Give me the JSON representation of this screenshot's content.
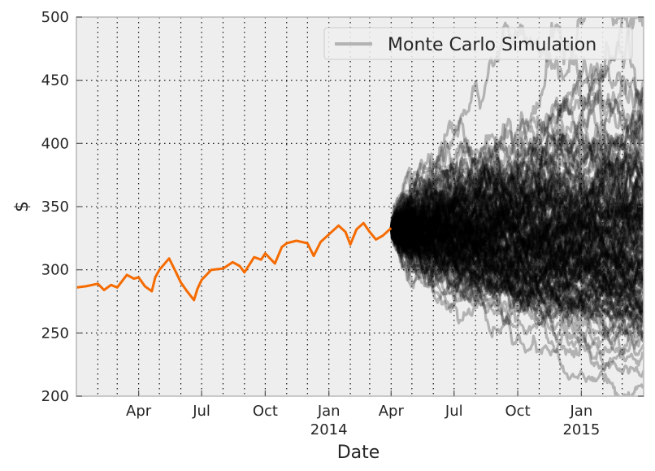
{
  "chart_data": {
    "type": "line",
    "title": "",
    "xlabel": "Date",
    "ylabel": "$",
    "ylim": [
      200,
      500
    ],
    "xlim": [
      "2013-01-01",
      "2015-04-01"
    ],
    "grid": true,
    "grid_style": "dotted",
    "background": "#eeeeee",
    "y_ticks": [
      200,
      250,
      300,
      350,
      400,
      450,
      500
    ],
    "x_ticks": [
      {
        "date": "2013-04-01",
        "label": "Apr",
        "sublabel": ""
      },
      {
        "date": "2013-07-01",
        "label": "Jul",
        "sublabel": ""
      },
      {
        "date": "2013-10-01",
        "label": "Oct",
        "sublabel": ""
      },
      {
        "date": "2014-01-01",
        "label": "Jan",
        "sublabel": "2014"
      },
      {
        "date": "2014-04-01",
        "label": "Apr",
        "sublabel": ""
      },
      {
        "date": "2014-07-01",
        "label": "Jul",
        "sublabel": ""
      },
      {
        "date": "2014-10-01",
        "label": "Oct",
        "sublabel": ""
      },
      {
        "date": "2015-01-01",
        "label": "Jan",
        "sublabel": "2015"
      }
    ],
    "legend": {
      "placement": "top-right",
      "entries": [
        {
          "label": "Monte Carlo Simulation",
          "color": "#000000"
        }
      ]
    },
    "series": [
      {
        "color": "#f56b00",
        "x": [
          "2013-01-01",
          "2013-01-15",
          "2013-02-01",
          "2013-02-10",
          "2013-02-20",
          "2013-03-01",
          "2013-03-15",
          "2013-03-25",
          "2013-04-01",
          "2013-04-10",
          "2013-04-20",
          "2013-04-25",
          "2013-05-01",
          "2013-05-15",
          "2013-05-25",
          "2013-06-01",
          "2013-06-10",
          "2013-06-20",
          "2013-06-25",
          "2013-07-01",
          "2013-07-15",
          "2013-08-01",
          "2013-08-15",
          "2013-08-25",
          "2013-09-01",
          "2013-09-15",
          "2013-09-25",
          "2013-10-01",
          "2013-10-15",
          "2013-10-25",
          "2013-11-01",
          "2013-11-15",
          "2013-12-01",
          "2013-12-10",
          "2013-12-20",
          "2014-01-01",
          "2014-01-15",
          "2014-01-25",
          "2014-02-01",
          "2014-02-10",
          "2014-02-20",
          "2014-03-01",
          "2014-03-10",
          "2014-03-20",
          "2014-04-01"
        ],
        "y": [
          286,
          287,
          289,
          284,
          288,
          286,
          296,
          293,
          294,
          287,
          283,
          294,
          300,
          309,
          298,
          290,
          283,
          276,
          285,
          292,
          300,
          301,
          306,
          303,
          298,
          310,
          308,
          313,
          305,
          318,
          321,
          323,
          321,
          311,
          322,
          328,
          335,
          330,
          320,
          332,
          337,
          330,
          324,
          327,
          333
        ]
      }
    ],
    "simulation": {
      "color": "#000000",
      "start": {
        "date": "2014-04-01",
        "value": 333
      },
      "end_date": "2015-04-01",
      "paths": 150,
      "approx_range_at_end": [
        240,
        490
      ]
    }
  }
}
